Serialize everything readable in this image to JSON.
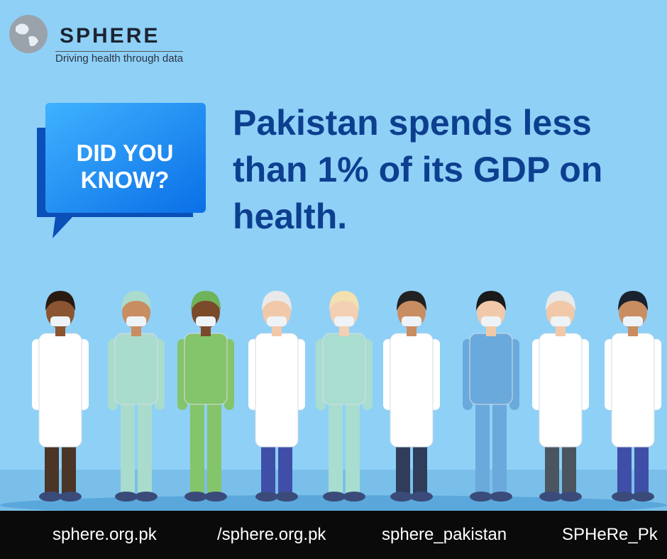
{
  "logo": {
    "name": "SPHERE",
    "tagline": "Driving health through data"
  },
  "badge": {
    "lines": [
      "DID YOU",
      "KNOW?"
    ]
  },
  "headline": "Pakistan spends less than 1% of its GDP on health.",
  "footer": {
    "links": [
      "sphere.org.pk",
      "/sphere.org.pk",
      "sphere_pakistan",
      "SPHeRe_Pk"
    ]
  }
}
